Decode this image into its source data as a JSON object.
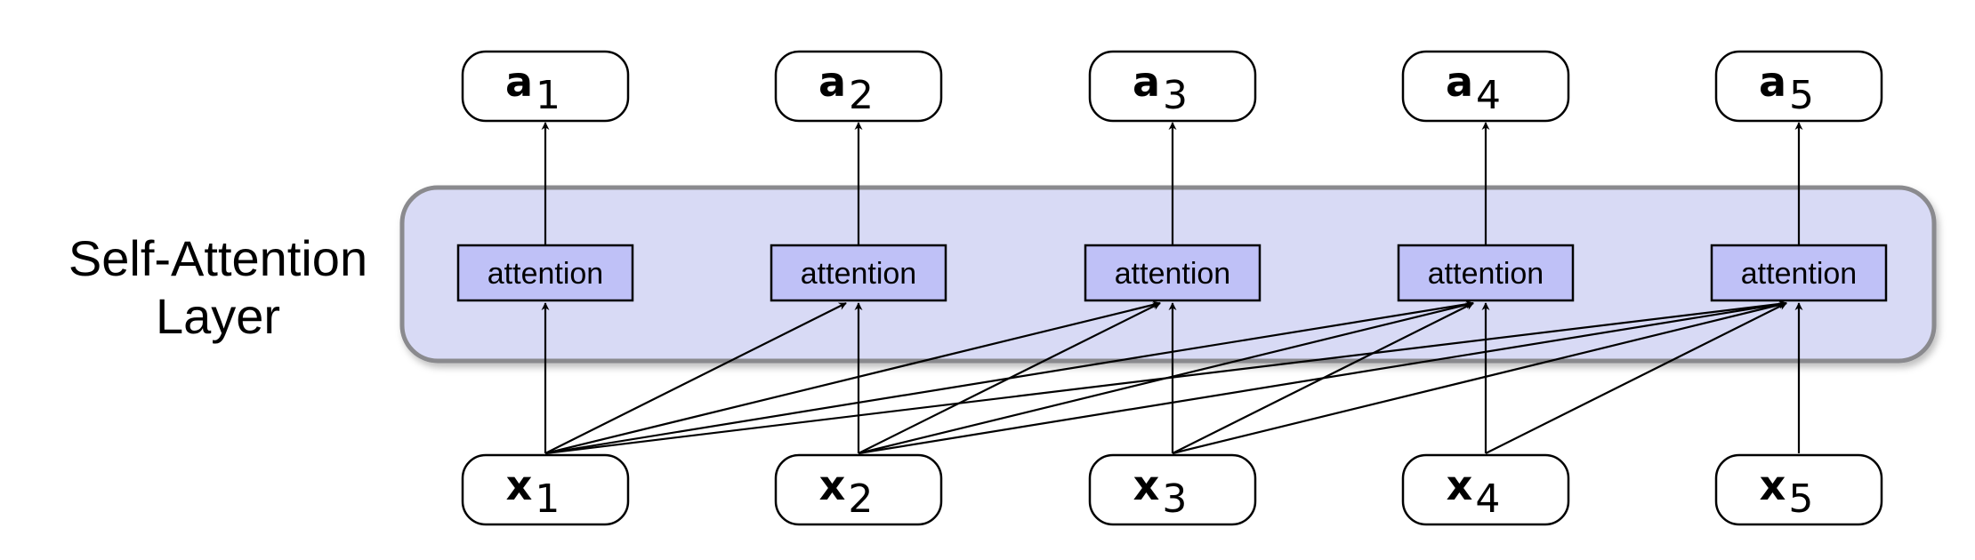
{
  "layer": {
    "label_line1": "Self-Attention",
    "label_line2": "Layer",
    "fill": "#d8daf5",
    "border": "#8a8a8e"
  },
  "attention_label": "attention",
  "attention_fill": "#bfc1f7",
  "outputs": [
    {
      "var": "a",
      "sub": "1"
    },
    {
      "var": "a",
      "sub": "2"
    },
    {
      "var": "a",
      "sub": "3"
    },
    {
      "var": "a",
      "sub": "4"
    },
    {
      "var": "a",
      "sub": "5"
    }
  ],
  "inputs": [
    {
      "var": "x",
      "sub": "1"
    },
    {
      "var": "x",
      "sub": "2"
    },
    {
      "var": "x",
      "sub": "3"
    },
    {
      "var": "x",
      "sub": "4"
    },
    {
      "var": "x",
      "sub": "5"
    }
  ]
}
